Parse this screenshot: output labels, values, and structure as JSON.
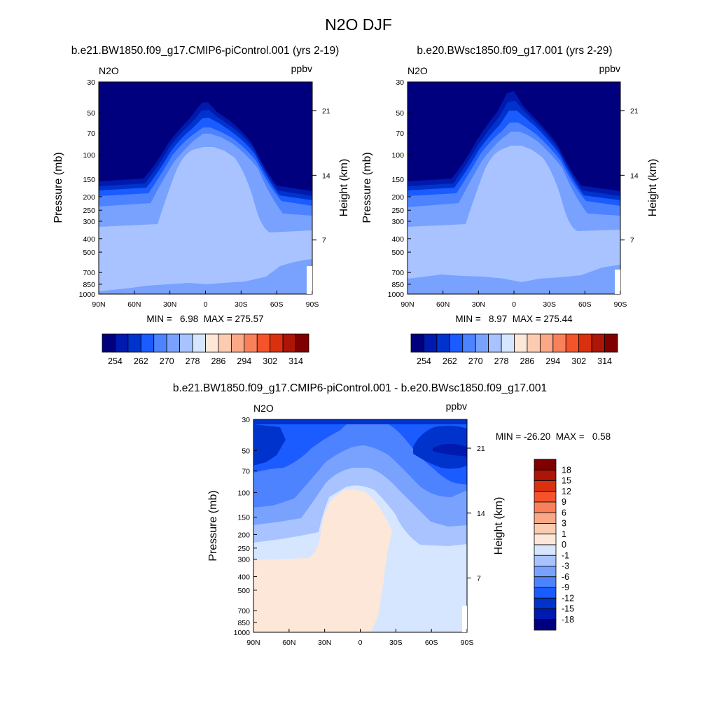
{
  "page_title": "N2O DJF",
  "chart_data": [
    {
      "type": "heatmap",
      "title": "b.e21.BW1850.f09_g17.CMIP6-piControl.001 (yrs 2-19)",
      "variable": "N2O",
      "units": "ppbv",
      "ylabel": "Pressure (mb)",
      "y2label": "Height (km)",
      "xticks": [
        "90N",
        "60N",
        "30N",
        "0",
        "30S",
        "60S",
        "90S"
      ],
      "yticks": [
        30,
        50,
        70,
        100,
        150,
        200,
        250,
        300,
        400,
        500,
        700,
        850,
        1000
      ],
      "y2ticks": [
        21,
        14,
        7
      ],
      "stats": "MIN =   6.98  MAX = 275.57",
      "colorbar": {
        "orientation": "horizontal",
        "colors": [
          "#00007f",
          "#0019af",
          "#0033cc",
          "#1a5cff",
          "#4d83ff",
          "#79a2ff",
          "#a8c3ff",
          "#d6e6ff",
          "#fde7d8",
          "#fcccb0",
          "#fba887",
          "#f8805a",
          "#f5532b",
          "#d9300f",
          "#ad1507",
          "#800000"
        ],
        "labels": [
          "254",
          "262",
          "270",
          "278",
          "286",
          "294",
          "302",
          "314"
        ]
      },
      "levels_shown": [
        "#00007f",
        "#0019af",
        "#0033cc",
        "#1a5cff",
        "#4d83ff",
        "#79a2ff",
        "#a8c3ff"
      ]
    },
    {
      "type": "heatmap",
      "title": "b.e20.BWsc1850.f09_g17.001 (yrs 2-29)",
      "variable": "N2O",
      "units": "ppbv",
      "ylabel": "Pressure (mb)",
      "y2label": "Height (km)",
      "xticks": [
        "90N",
        "60N",
        "30N",
        "0",
        "30S",
        "60S",
        "90S"
      ],
      "yticks": [
        30,
        50,
        70,
        100,
        150,
        200,
        250,
        300,
        400,
        500,
        700,
        850,
        1000
      ],
      "y2ticks": [
        21,
        14,
        7
      ],
      "stats": "MIN =   8.97  MAX = 275.44",
      "colorbar": {
        "orientation": "horizontal",
        "colors": [
          "#00007f",
          "#0019af",
          "#0033cc",
          "#1a5cff",
          "#4d83ff",
          "#79a2ff",
          "#a8c3ff",
          "#d6e6ff",
          "#fde7d8",
          "#fcccb0",
          "#fba887",
          "#f8805a",
          "#f5532b",
          "#d9300f",
          "#ad1507",
          "#800000"
        ],
        "labels": [
          "254",
          "262",
          "270",
          "278",
          "286",
          "294",
          "302",
          "314"
        ]
      }
    },
    {
      "type": "heatmap",
      "title": "b.e21.BW1850.f09_g17.CMIP6-piControl.001 - b.e20.BWsc1850.f09_g17.001",
      "variable": "N2O",
      "units": "ppbv",
      "ylabel": "Pressure (mb)",
      "y2label": "Height (km)",
      "xticks": [
        "90N",
        "60N",
        "30N",
        "0",
        "30S",
        "60S",
        "90S"
      ],
      "yticks": [
        30,
        50,
        70,
        100,
        150,
        200,
        250,
        300,
        400,
        500,
        700,
        850,
        1000
      ],
      "y2ticks": [
        21,
        14,
        7
      ],
      "stats": "MIN = -26.20  MAX =   0.58",
      "colorbar": {
        "orientation": "vertical",
        "colors": [
          "#00007f",
          "#0019af",
          "#0033cc",
          "#1a5cff",
          "#4d83ff",
          "#79a2ff",
          "#a8c3ff",
          "#d6e6ff",
          "#fde7d8",
          "#fcccb0",
          "#fba887",
          "#f8805a",
          "#f5532b",
          "#d9300f",
          "#ad1507",
          "#800000"
        ],
        "labels": [
          "18",
          "15",
          "12",
          "9",
          "6",
          "3",
          "1",
          "0",
          "-1",
          "-3",
          "-6",
          "-9",
          "-12",
          "-15",
          "-18"
        ]
      }
    }
  ]
}
